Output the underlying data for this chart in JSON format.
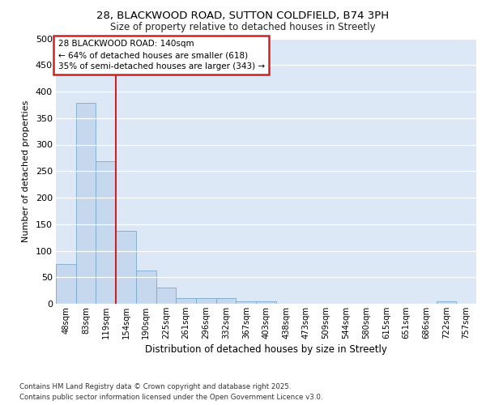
{
  "title_line1": "28, BLACKWOOD ROAD, SUTTON COLDFIELD, B74 3PH",
  "title_line2": "Size of property relative to detached houses in Streetly",
  "xlabel": "Distribution of detached houses by size in Streetly",
  "ylabel": "Number of detached properties",
  "categories": [
    "48sqm",
    "83sqm",
    "119sqm",
    "154sqm",
    "190sqm",
    "225sqm",
    "261sqm",
    "296sqm",
    "332sqm",
    "367sqm",
    "403sqm",
    "438sqm",
    "473sqm",
    "509sqm",
    "544sqm",
    "580sqm",
    "615sqm",
    "651sqm",
    "686sqm",
    "722sqm",
    "757sqm"
  ],
  "values": [
    75,
    378,
    268,
    137,
    62,
    30,
    10,
    10,
    10,
    5,
    5,
    0,
    0,
    0,
    0,
    0,
    0,
    0,
    0,
    5,
    0
  ],
  "bar_color": "#c5d8ee",
  "bar_edge_color": "#7aaacb",
  "plot_bg_color": "#dce8f5",
  "grid_color": "#ffffff",
  "fig_bg_color": "#ffffff",
  "vline_color": "#cc2222",
  "vline_x_index": 2,
  "vline_label_title": "28 BLACKWOOD ROAD: 140sqm",
  "vline_label_line1": "← 64% of detached houses are smaller (618)",
  "vline_label_line2": "35% of semi-detached houses are larger (343) →",
  "annotation_box_color": "#cc2222",
  "ylim": [
    0,
    500
  ],
  "yticks": [
    0,
    50,
    100,
    150,
    200,
    250,
    300,
    350,
    400,
    450,
    500
  ],
  "footnote1": "Contains HM Land Registry data © Crown copyright and database right 2025.",
  "footnote2": "Contains public sector information licensed under the Open Government Licence v3.0."
}
